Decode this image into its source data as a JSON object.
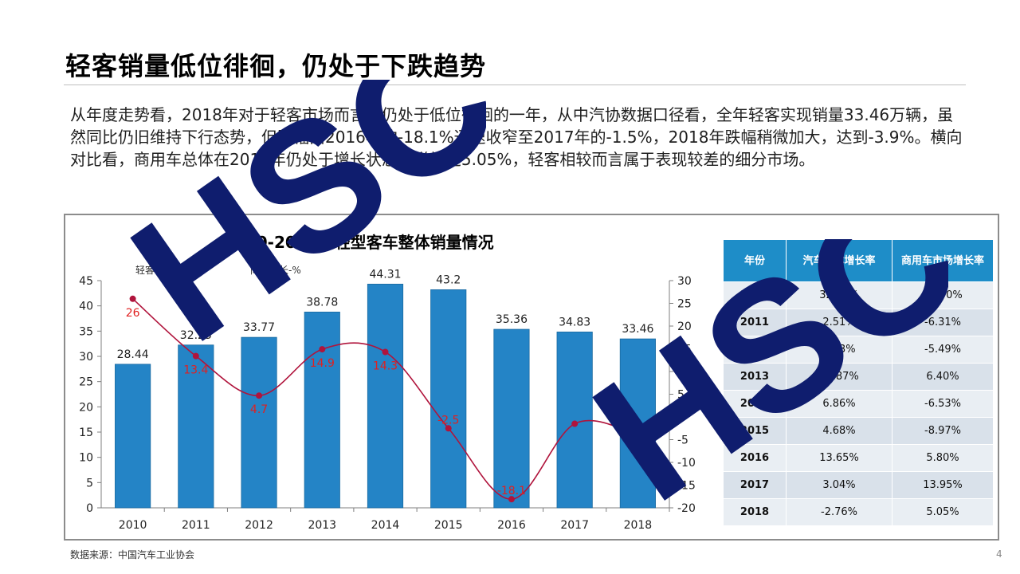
{
  "slide": {
    "title": "轻客销量低位徘徊，仍处于下跌趋势",
    "paragraph": "从年度走势看，2018年对于轻客市场而言是仍处于低位徘徊的一年，从中汽协数据口径看，全年轻客实现销量33.46万辆，虽然同比仍旧维持下行态势，但跌幅由2016年的-18.1%迅速收窄至2017年的-1.5%，2018年跌幅稍微加大，达到-3.9%。横向对比看，商用车总体在2018年仍处于增长状态，增幅达5.05%，轻客相较而言属于表现较差的细分市场。",
    "source": "数据来源：中国汽车工业协会",
    "page_number": "4",
    "watermark": "HSC"
  },
  "chart_data": {
    "type": "bar",
    "title": "2010-2018年轻型客车整体销量情况",
    "legend": [
      "轻客销量-万辆",
      "同比增长-%"
    ],
    "categories": [
      "2010",
      "2011",
      "2012",
      "2013",
      "2014",
      "2015",
      "2016",
      "2017",
      "2018"
    ],
    "series": [
      {
        "name": "轻客销量-万辆",
        "type": "bar",
        "axis": "left",
        "color": "#2484c6",
        "values": [
          28.44,
          32.25,
          33.77,
          38.78,
          44.31,
          43.2,
          35.36,
          34.83,
          33.46
        ]
      },
      {
        "name": "同比增长-%",
        "type": "line",
        "axis": "right",
        "color": "#b0143c",
        "values": [
          26.0,
          13.4,
          4.7,
          14.9,
          14.3,
          -2.5,
          -18.1,
          -1.5,
          -3.9
        ]
      }
    ],
    "yleft": {
      "min": 0,
      "max": 45,
      "ticks": [
        0,
        5,
        10,
        15,
        20,
        25,
        30,
        35,
        40,
        45
      ]
    },
    "yright": {
      "min": -20,
      "max": 30,
      "ticks": [
        -20,
        -15,
        -10,
        -5,
        0,
        5,
        10,
        15,
        20,
        25,
        30
      ]
    },
    "point_labels": [
      "26",
      "13.4",
      "4.7",
      "14.9",
      "14.3",
      "-2.5",
      "-18.1",
      "",
      ""
    ]
  },
  "table": {
    "headers": [
      "年份",
      "汽车总体增长率",
      "商用车市场增长率"
    ],
    "rows": [
      [
        "2010",
        "32.37%",
        "29.90%"
      ],
      [
        "2011",
        "2.51%",
        "-6.31%"
      ],
      [
        "2012",
        "4.33%",
        "-5.49%"
      ],
      [
        "2013",
        "13.87%",
        "6.40%"
      ],
      [
        "2014",
        "6.86%",
        "-6.53%"
      ],
      [
        "2015",
        "4.68%",
        "-8.97%"
      ],
      [
        "2016",
        "13.65%",
        "5.80%"
      ],
      [
        "2017",
        "3.04%",
        "13.95%"
      ],
      [
        "2018",
        "-2.76%",
        "5.05%"
      ]
    ]
  }
}
